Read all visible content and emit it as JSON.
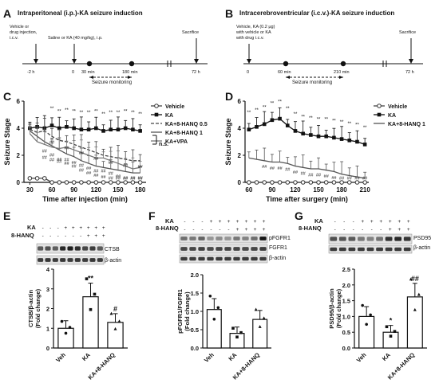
{
  "panels": {
    "A": {
      "letter": "A",
      "title": "Intraperitoneal (i.p.)-KA seizure induction",
      "ann_left": [
        "Vehicle  or",
        "drug injection,",
        "i.c.v."
      ],
      "ann_mid": "Saline or KA (40 mg/kg), i.p.",
      "ann_right": "Sacrifice",
      "ticks": [
        "-2 h",
        "0",
        "30 min",
        "180 min",
        "72 h"
      ],
      "monitor": "Seizure monitoring"
    },
    "B": {
      "letter": "B",
      "title": "Intracerebroventricular (i.c.v.)-KA seizure induction",
      "ann_left": [
        "Vehicle,  KA (0.2 μg)",
        "with vehicle  or KA",
        "with drug i.c.v."
      ],
      "ann_right": "Sacrifice",
      "ticks": [
        "0",
        "60 min",
        "210 min",
        "72 h"
      ],
      "monitor": "Seizure monitoring"
    },
    "C": {
      "letter": "C"
    },
    "D": {
      "letter": "D"
    },
    "E": {
      "letter": "E",
      "row1": "KA",
      "row2": "8-HANQ",
      "blot1": "CTSB",
      "blot2": "β-actin"
    },
    "F": {
      "letter": "F",
      "row1": "KA",
      "row2": "8-HANQ",
      "blot1": "pFGFR1",
      "blot2": "FGFR1",
      "blot3": "β-actin"
    },
    "G": {
      "letter": "G",
      "row1": "KA",
      "row2": "8-HANQ",
      "blot1": "PSD95",
      "blot2": "β-actin"
    }
  },
  "chart_data": [
    {
      "id": "C",
      "type": "line",
      "xlabel": "Time after injection (min)",
      "ylabel": "Seizure Stage",
      "xlim": [
        22,
        188
      ],
      "ylim": [
        0,
        6
      ],
      "xticks": [
        30,
        60,
        90,
        120,
        150,
        180
      ],
      "yticks": [
        0,
        2,
        4,
        6
      ],
      "legend": [
        "Vehicle",
        "KA",
        "KA+8-HANQ 0.5",
        "KA+8-HANQ 1",
        "KA+VPA"
      ],
      "ns_label": "n.s.",
      "x": [
        30,
        40,
        50,
        60,
        70,
        80,
        90,
        100,
        110,
        120,
        130,
        140,
        150,
        160,
        170,
        180
      ],
      "series": [
        {
          "name": "Vehicle",
          "values": [
            0.3,
            0.3,
            0.3,
            0,
            0,
            0,
            0,
            0,
            0,
            0,
            0,
            0,
            0,
            0,
            0,
            0
          ]
        },
        {
          "name": "KA",
          "values": [
            4.0,
            4.1,
            4.0,
            4.2,
            4.0,
            4.1,
            4.0,
            3.9,
            3.9,
            4.0,
            3.8,
            3.9,
            3.9,
            4.0,
            3.9,
            3.8
          ]
        },
        {
          "name": "KA+8-HANQ 0.5",
          "values": [
            3.9,
            3.7,
            3.8,
            3.4,
            3.1,
            3.0,
            2.8,
            2.6,
            2.4,
            2.2,
            2.0,
            1.9,
            1.8,
            1.7,
            1.6,
            1.6
          ]
        },
        {
          "name": "KA+8-HANQ 1",
          "values": [
            3.8,
            3.4,
            3.0,
            2.7,
            2.4,
            2.1,
            1.9,
            1.6,
            1.4,
            1.2,
            1.1,
            1.0,
            0.9,
            0.8,
            0.7,
            0.7
          ]
        },
        {
          "name": "KA+VPA",
          "values": [
            3.6,
            3.0,
            2.8,
            2.6,
            2.5,
            2.6,
            2.4,
            2.2,
            2.0,
            1.8,
            1.8,
            1.6,
            1.4,
            1.2,
            1.0,
            1.1
          ]
        }
      ]
    },
    {
      "id": "D",
      "type": "line",
      "xlabel": "Time after surgery (min)",
      "ylabel": "Seizure Stage",
      "xlim": [
        55,
        215
      ],
      "ylim": [
        0,
        6
      ],
      "xticks": [
        60,
        90,
        120,
        150,
        180,
        210
      ],
      "yticks": [
        0,
        2,
        4,
        6
      ],
      "legend": [
        "Vehicle",
        "KA",
        "KA+8-HANQ 1"
      ],
      "x": [
        60,
        70,
        80,
        90,
        100,
        110,
        120,
        130,
        140,
        150,
        160,
        170,
        180,
        190,
        200,
        210
      ],
      "series": [
        {
          "name": "Vehicle",
          "values": [
            0,
            0,
            0,
            0,
            0,
            0,
            0,
            0,
            0,
            0,
            0,
            0,
            0,
            0,
            0,
            0
          ]
        },
        {
          "name": "KA",
          "values": [
            3.9,
            4.1,
            4.3,
            4.6,
            4.7,
            4.2,
            3.8,
            3.6,
            3.5,
            3.4,
            3.4,
            3.3,
            3.2,
            3.1,
            3.0,
            2.8
          ]
        },
        {
          "name": "KA+8-HANQ 1",
          "values": [
            1.8,
            1.7,
            1.6,
            1.5,
            1.5,
            1.4,
            1.2,
            1.1,
            1.0,
            1.0,
            0.9,
            0.8,
            0.6,
            0.5,
            0.4,
            0.3
          ]
        }
      ]
    },
    {
      "id": "E",
      "type": "bar",
      "categories": [
        "Veh",
        "KA",
        "KA+8-HANQ"
      ],
      "values": [
        1.0,
        2.6,
        1.3
      ],
      "ylabel": "CTSB/β-actin (Fold change)",
      "ylim": [
        0,
        4
      ],
      "yticks": [
        0,
        1,
        2,
        3,
        4
      ],
      "annotations": [
        "",
        "**",
        "#"
      ]
    },
    {
      "id": "F",
      "type": "bar",
      "categories": [
        "Veh",
        "KA",
        "KA+8-HANQ"
      ],
      "values": [
        1.05,
        0.4,
        0.78
      ],
      "ylabel": "pFGFR1/FGFR1 (Fold change)",
      "ylim": [
        0,
        2.0
      ],
      "yticks": [
        0.0,
        0.5,
        1.0,
        1.5,
        2.0
      ],
      "annotations": [
        "",
        "",
        ""
      ]
    },
    {
      "id": "G",
      "type": "bar",
      "categories": [
        "Veh",
        "KA",
        "KA+8-HANQ"
      ],
      "values": [
        1.0,
        0.5,
        1.62
      ],
      "ylabel": "PSD95/β-actin (Fold change)",
      "ylim": [
        0,
        2.5
      ],
      "yticks": [
        0.0,
        0.5,
        1.0,
        1.5,
        2.0,
        2.5
      ],
      "annotations": [
        "",
        "*",
        "##"
      ]
    }
  ]
}
